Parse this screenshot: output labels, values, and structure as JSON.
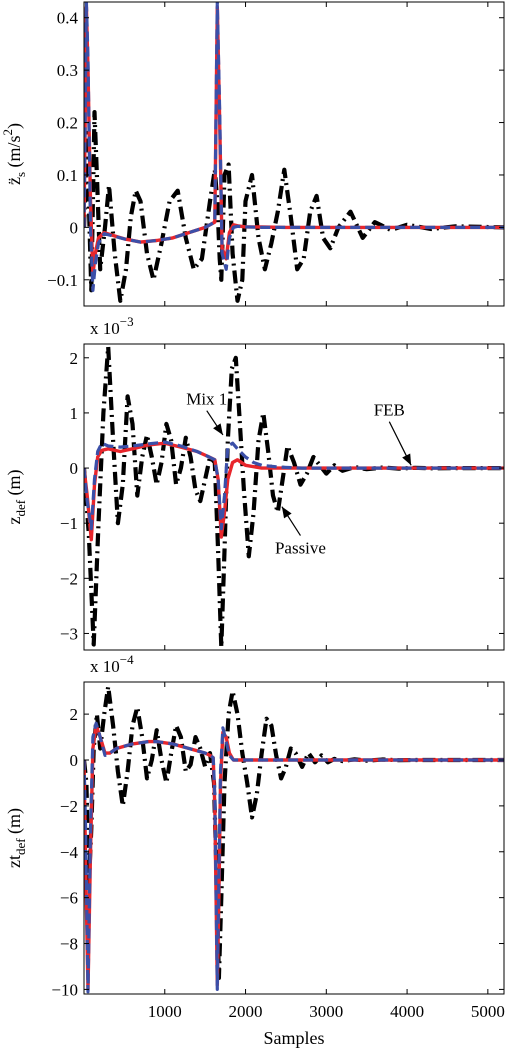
{
  "chart_data": [
    {
      "type": "line",
      "panel": "top",
      "ylabel": {
        "main": "z̈",
        "sub": "s",
        "unit": " (m/s",
        "sup": "2",
        "close": ")"
      },
      "exponent_label": "",
      "xlim": [
        0,
        5200
      ],
      "ylim": [
        -0.15,
        0.43
      ],
      "yticks": [
        -0.1,
        0,
        0.1,
        0.2,
        0.3,
        0.4
      ],
      "ytick_labels": [
        "−0.1",
        "0",
        "0.1",
        "0.2",
        "0.3",
        "0.4"
      ],
      "xticks": [
        1000,
        2000,
        3000,
        4000,
        5000
      ],
      "show_xtick_labels": false,
      "grid": false,
      "series": [
        {
          "style": "passive-dashdot",
          "color": "#000000",
          "x": [
            0,
            40,
            60,
            90,
            130,
            160,
            200,
            260,
            310,
            380,
            450,
            520,
            580,
            640,
            700,
            780,
            860,
            960,
            1060,
            1160,
            1260,
            1360,
            1460,
            1560,
            1620,
            1650,
            1680,
            1700,
            1740,
            1790,
            1840,
            1900,
            1960,
            2000,
            2080,
            2160,
            2240,
            2320,
            2400,
            2480,
            2560,
            2640,
            2720,
            2800,
            2880,
            2960,
            3050,
            3150,
            3300,
            3450,
            3600,
            3800,
            4000,
            4300,
            4600,
            5200
          ],
          "y": [
            0,
            0.18,
            0.05,
            -0.12,
            0.22,
            0.1,
            -0.08,
            0.0,
            0.08,
            -0.05,
            -0.14,
            -0.08,
            0.02,
            0.07,
            0.05,
            -0.05,
            -0.1,
            -0.03,
            0.05,
            0.07,
            -0.02,
            -0.08,
            -0.06,
            0.05,
            0.11,
            0.05,
            -0.06,
            -0.1,
            0.1,
            0.12,
            -0.05,
            -0.14,
            -0.1,
            0.05,
            0.1,
            -0.02,
            -0.08,
            -0.03,
            0.03,
            0.11,
            0.02,
            -0.08,
            -0.06,
            0.03,
            0.06,
            -0.02,
            -0.04,
            0.0,
            0.03,
            -0.02,
            0.01,
            -0.005,
            0.005,
            -0.003,
            0.002,
            0
          ]
        },
        {
          "style": "feb-solid",
          "color": "#e8262c",
          "x": [
            0,
            30,
            50,
            80,
            110,
            140,
            180,
            250,
            350,
            500,
            700,
            900,
            1100,
            1300,
            1500,
            1620,
            1650,
            1680,
            1710,
            1760,
            1800,
            1850,
            1900,
            2000,
            2200,
            2500,
            3000,
            4000,
            5200
          ],
          "y": [
            0,
            0.42,
            0.3,
            0.05,
            -0.09,
            -0.05,
            -0.02,
            -0.01,
            -0.015,
            -0.022,
            -0.028,
            -0.025,
            -0.02,
            -0.01,
            0.0,
            0.01,
            0.42,
            0.2,
            -0.04,
            -0.06,
            -0.01,
            0.005,
            0.003,
            0.001,
            0.001,
            0.0,
            0.0,
            0.0,
            0.0
          ]
        },
        {
          "style": "mix-dashed",
          "color": "#3b4fa8",
          "x": [
            0,
            30,
            50,
            80,
            110,
            140,
            180,
            250,
            350,
            500,
            700,
            900,
            1100,
            1300,
            1500,
            1620,
            1650,
            1680,
            1710,
            1760,
            1800,
            1850,
            1900,
            2000,
            2200,
            2500,
            3000,
            4000,
            5200
          ],
          "y": [
            0,
            0.43,
            0.32,
            0.0,
            -0.12,
            -0.07,
            -0.03,
            -0.012,
            -0.016,
            -0.022,
            -0.028,
            -0.025,
            -0.02,
            -0.01,
            0.0,
            0.01,
            0.43,
            0.22,
            -0.05,
            -0.08,
            -0.02,
            0.0,
            0.002,
            0.001,
            0.0,
            0.0,
            0.0,
            0.0,
            0.0
          ]
        }
      ]
    },
    {
      "type": "line",
      "panel": "middle",
      "ylabel": {
        "main": "z",
        "sub": "def",
        "unit": " (m)",
        "sup": "",
        "close": ""
      },
      "exponent_label": "x 10",
      "exponent_power": "−3",
      "xlim": [
        0,
        5200
      ],
      "ylim": [
        -3.3,
        2.25
      ],
      "yticks": [
        -3,
        -2,
        -1,
        0,
        1,
        2
      ],
      "ytick_labels": [
        "−3",
        "−2",
        "−1",
        "0",
        "1",
        "2"
      ],
      "xticks": [
        1000,
        2000,
        3000,
        4000,
        5000
      ],
      "show_xtick_labels": false,
      "grid": false,
      "annotations": [
        {
          "text": "Mix 1",
          "text_x": 1520,
          "text_y": 1.15,
          "arrow_x": 1720,
          "arrow_y": 0.6
        },
        {
          "text": "FEB",
          "text_x": 3780,
          "text_y": 0.95,
          "arrow_x": 4050,
          "arrow_y": 0.05
        },
        {
          "text": "Passive",
          "text_x": 2680,
          "text_y": -1.55,
          "arrow_x": 2450,
          "arrow_y": -0.7
        }
      ],
      "series": [
        {
          "style": "passive-dashdot",
          "color": "#000000",
          "x": [
            0,
            60,
            120,
            180,
            240,
            300,
            360,
            420,
            480,
            540,
            600,
            660,
            720,
            780,
            840,
            900,
            960,
            1020,
            1080,
            1140,
            1200,
            1260,
            1320,
            1380,
            1440,
            1500,
            1560,
            1620,
            1660,
            1700,
            1740,
            1780,
            1830,
            1880,
            1930,
            1980,
            2040,
            2100,
            2160,
            2220,
            2280,
            2340,
            2400,
            2460,
            2520,
            2600,
            2680,
            2760,
            2840,
            2920,
            3000,
            3100,
            3200,
            3350,
            3500,
            3700,
            3900,
            4100,
            4300,
            4600,
            4900,
            5200
          ],
          "y": [
            0,
            -1.2,
            -3.2,
            -1.0,
            1.0,
            2.2,
            0.5,
            -1.0,
            -0.3,
            1.3,
            0.8,
            -0.5,
            0.2,
            0.6,
            0.2,
            -0.3,
            0.1,
            0.8,
            0.5,
            -0.3,
            0.0,
            0.55,
            0.2,
            -0.4,
            -0.6,
            -0.2,
            0.2,
            0.1,
            -1.5,
            -3.25,
            -1.5,
            0.5,
            1.8,
            2.0,
            0.8,
            -0.4,
            -1.6,
            -0.8,
            0.5,
            1.0,
            0.3,
            -0.5,
            -0.8,
            -0.2,
            0.4,
            0.1,
            -0.3,
            -0.1,
            0.2,
            0.05,
            -0.1,
            0.05,
            -0.05,
            0.02,
            -0.02,
            0.01,
            -0.01,
            0.005,
            -0.005,
            0.0,
            0.0,
            0.0
          ]
        },
        {
          "style": "feb-solid",
          "color": "#e8262c",
          "x": [
            0,
            40,
            90,
            130,
            170,
            220,
            300,
            450,
            600,
            800,
            1000,
            1200,
            1400,
            1550,
            1620,
            1660,
            1700,
            1740,
            1780,
            1840,
            1900,
            2000,
            2200,
            2500,
            3000,
            4000,
            5200
          ],
          "y": [
            0,
            -0.5,
            -1.3,
            -0.3,
            0.2,
            0.32,
            0.35,
            0.3,
            0.35,
            0.42,
            0.45,
            0.38,
            0.3,
            0.2,
            0.15,
            -0.2,
            -1.25,
            -0.8,
            -0.2,
            0.1,
            0.15,
            0.05,
            0.0,
            0.0,
            0.0,
            0.0,
            0.0
          ]
        },
        {
          "style": "mix-dashed",
          "color": "#3b4fa8",
          "x": [
            0,
            40,
            90,
            130,
            170,
            220,
            300,
            450,
            600,
            800,
            1000,
            1200,
            1400,
            1550,
            1620,
            1660,
            1700,
            1740,
            1780,
            1840,
            1900,
            2000,
            2100,
            2200,
            2400,
            2700,
            3000,
            4000,
            5200
          ],
          "y": [
            0,
            -0.6,
            -1.1,
            -0.2,
            0.3,
            0.45,
            0.4,
            0.38,
            0.4,
            0.44,
            0.47,
            0.4,
            0.3,
            0.2,
            0.15,
            -0.2,
            -1.1,
            -0.5,
            0.4,
            0.45,
            0.35,
            0.2,
            0.1,
            0.05,
            0.02,
            0.0,
            0.0,
            0.0,
            0.0
          ]
        }
      ]
    },
    {
      "type": "line",
      "panel": "bottom",
      "ylabel": {
        "main": "zt",
        "sub": "def",
        "unit": " (m)",
        "sup": "",
        "close": ""
      },
      "exponent_label": "x 10",
      "exponent_power": "−4",
      "xlabel": "Samples",
      "xlim": [
        0,
        5200
      ],
      "ylim": [
        -10.2,
        3.4
      ],
      "yticks": [
        -10,
        -8,
        -6,
        -4,
        -2,
        0,
        2
      ],
      "ytick_labels": [
        "−10",
        "−8",
        "−6",
        "−4",
        "−2",
        "0",
        "2"
      ],
      "xticks": [
        1000,
        2000,
        3000,
        4000,
        5000
      ],
      "xtick_labels": [
        "1000",
        "2000",
        "3000",
        "4000",
        "5000"
      ],
      "show_xtick_labels": true,
      "grid": false,
      "series": [
        {
          "style": "passive-dashdot",
          "color": "#000000",
          "x": [
            0,
            30,
            60,
            90,
            120,
            160,
            200,
            250,
            300,
            360,
            420,
            480,
            540,
            600,
            660,
            720,
            780,
            840,
            900,
            960,
            1020,
            1080,
            1140,
            1200,
            1260,
            1320,
            1380,
            1440,
            1500,
            1560,
            1610,
            1640,
            1670,
            1700,
            1740,
            1790,
            1840,
            1900,
            1960,
            2020,
            2080,
            2140,
            2200,
            2260,
            2320,
            2380,
            2440,
            2500,
            2560,
            2620,
            2700,
            2780,
            2860,
            2940,
            3020,
            3100,
            3200,
            3350,
            3500,
            3700,
            3900,
            4100,
            4400,
            4800,
            5200
          ],
          "y": [
            0,
            -1.0,
            -5.5,
            -3.0,
            0.5,
            2.0,
            0.5,
            2.0,
            3.2,
            1.5,
            -0.5,
            -2.0,
            -0.5,
            1.5,
            2.3,
            1.0,
            -0.8,
            0.0,
            1.3,
            0.0,
            -1.0,
            0.3,
            1.5,
            1.0,
            -0.5,
            -0.2,
            1.0,
            0.5,
            -0.3,
            0.3,
            -1.0,
            -5.0,
            -9.5,
            -6.0,
            -1.0,
            2.0,
            3.0,
            2.0,
            0.3,
            -1.0,
            -2.5,
            -1.5,
            0.3,
            1.8,
            1.5,
            0.2,
            -0.8,
            -0.3,
            0.5,
            0.3,
            -0.3,
            0.3,
            -0.1,
            0.2,
            -0.1,
            0.05,
            -0.05,
            0.03,
            -0.03,
            0.02,
            -0.01,
            0.0,
            0.0,
            0.0,
            0.0
          ]
        },
        {
          "style": "feb-solid",
          "color": "#e8262c",
          "x": [
            0,
            20,
            50,
            80,
            110,
            150,
            200,
            260,
            320,
            400,
            500,
            600,
            700,
            800,
            900,
            1000,
            1100,
            1200,
            1300,
            1400,
            1500,
            1560,
            1600,
            1620,
            1650,
            1670,
            1690,
            1720,
            1760,
            1800,
            1850,
            1900,
            2000,
            2200,
            2500,
            3000,
            4000,
            5200
          ],
          "y": [
            0,
            -4.5,
            -10.0,
            -4.0,
            0.5,
            1.5,
            1.0,
            0.3,
            0.3,
            0.5,
            0.6,
            0.7,
            0.75,
            0.8,
            0.8,
            0.75,
            0.7,
            0.6,
            0.5,
            0.4,
            0.3,
            0.2,
            0.1,
            -2.0,
            -9.8,
            -6.0,
            -1.0,
            1.2,
            1.0,
            0.3,
            0.0,
            0.0,
            0.0,
            0.0,
            0.0,
            0.0,
            0.0,
            0.0
          ]
        },
        {
          "style": "mix-dashed",
          "color": "#3b4fa8",
          "x": [
            0,
            20,
            50,
            80,
            110,
            150,
            200,
            260,
            320,
            400,
            500,
            600,
            700,
            800,
            900,
            1000,
            1100,
            1200,
            1300,
            1400,
            1500,
            1560,
            1600,
            1620,
            1650,
            1670,
            1690,
            1720,
            1760,
            1800,
            1850,
            1900,
            2000,
            2200,
            2500,
            3000,
            4000,
            5200
          ],
          "y": [
            0,
            -3.0,
            -10.1,
            -3.0,
            1.0,
            1.6,
            1.0,
            0.2,
            0.3,
            0.5,
            0.6,
            0.7,
            0.75,
            0.8,
            0.8,
            0.75,
            0.7,
            0.6,
            0.5,
            0.4,
            0.3,
            0.2,
            0.1,
            -1.5,
            -10.0,
            -5.0,
            -0.5,
            1.4,
            0.8,
            0.2,
            0.0,
            0.0,
            0.0,
            0.0,
            0.0,
            0.0,
            0.0,
            0.0
          ]
        }
      ]
    }
  ]
}
